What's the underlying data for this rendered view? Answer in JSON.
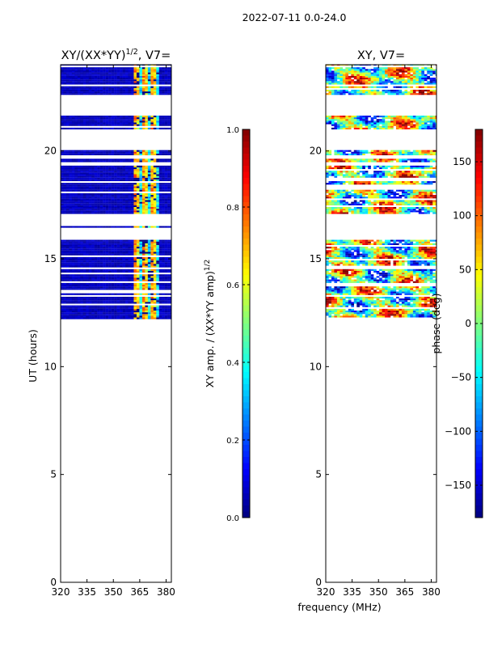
{
  "figure_title": "2022-07-11 0.0-24.0",
  "chart_data": [
    {
      "type": "heatmap",
      "title_main": "XY/(XX*YY)",
      "title_exp": "1/2",
      "title_tail": ", V7=",
      "xlabel": "",
      "ylabel": "UT (hours)",
      "xlim": [
        320,
        383
      ],
      "ylim": [
        0,
        24
      ],
      "xticks": [
        "320",
        "335",
        "350",
        "365",
        "380"
      ],
      "yticks": [
        "0",
        "5",
        "10",
        "15",
        "20"
      ],
      "data_band": [
        12.2,
        24.0
      ],
      "active_freq_band": [
        361,
        375
      ],
      "gaps": [
        [
          15.85,
          16.45
        ],
        [
          16.55,
          17.1
        ],
        [
          19.3,
          19.5
        ],
        [
          19.6,
          19.8
        ],
        [
          20.0,
          21.0
        ],
        [
          21.6,
          22.6
        ]
      ],
      "colorbar": {
        "label_main": "XY amp. / (XX*YY amp)",
        "label_exp": "1/2",
        "range": [
          0.0,
          1.0
        ],
        "ticks": [
          "0.0",
          "0.2",
          "0.4",
          "0.6",
          "0.8",
          "1.0"
        ],
        "colormap": "jet"
      }
    },
    {
      "type": "heatmap",
      "title_main": "XY, V7=",
      "xlabel": "frequency (MHz)",
      "ylabel": "",
      "xlim": [
        320,
        383
      ],
      "ylim": [
        0,
        24
      ],
      "xticks": [
        "320",
        "335",
        "350",
        "365",
        "380"
      ],
      "yticks": [
        "0",
        "5",
        "10",
        "15",
        "20"
      ],
      "data_band": [
        12.2,
        24.0
      ],
      "gaps": [
        [
          15.85,
          16.45
        ],
        [
          16.55,
          17.1
        ],
        [
          19.3,
          19.5
        ],
        [
          19.6,
          19.8
        ],
        [
          20.0,
          21.0
        ],
        [
          21.6,
          22.6
        ]
      ],
      "colorbar": {
        "label_main": "phase (deg)",
        "range": [
          -180,
          180
        ],
        "ticks": [
          "−150",
          "−100",
          "−50",
          "0",
          "50",
          "100",
          "150"
        ],
        "tick_values": [
          -150,
          -100,
          -50,
          0,
          50,
          100,
          150
        ],
        "colormap": "jet"
      }
    }
  ]
}
